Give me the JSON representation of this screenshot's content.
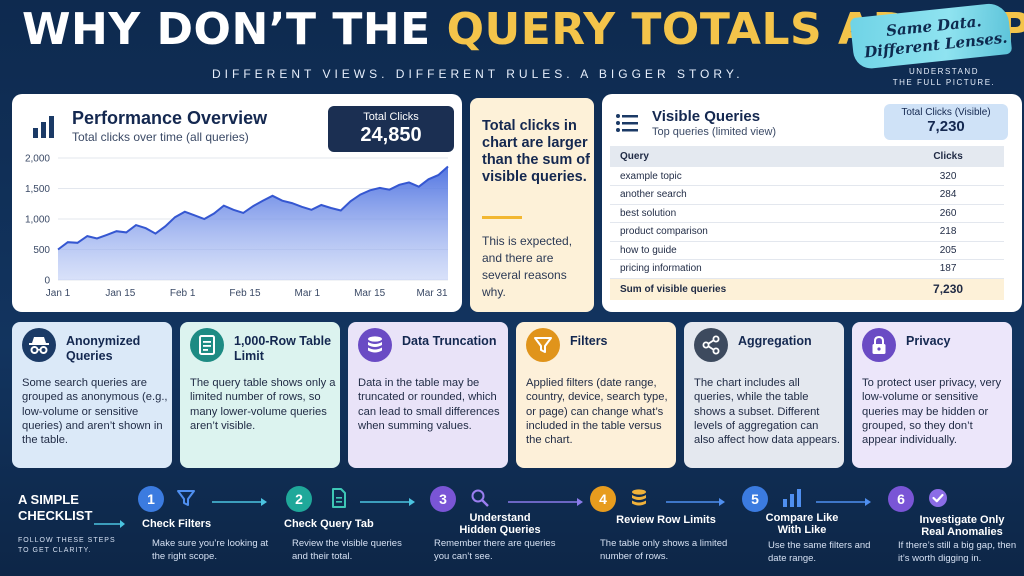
{
  "header": {
    "title_part1": "WHY DON’T THE ",
    "title_part2": "QUERY TOTALS ADD UP?",
    "subtitle": "DIFFERENT VIEWS.  DIFFERENT RULES.  A BIGGER STORY.",
    "badge_line1": "Same Data.",
    "badge_line2": "Different Lenses.",
    "badge_sub_line1": "UNDERSTAND",
    "badge_sub_line2": "THE FULL PICTURE."
  },
  "performance": {
    "title": "Performance Overview",
    "subtitle": "Total clicks over time (all queries)",
    "total_label": "Total Clicks",
    "total_value": "24,850"
  },
  "chart_data": {
    "type": "area",
    "title": "Performance Overview",
    "x_tick_labels": [
      "Jan 1",
      "Jan 15",
      "Feb 1",
      "Feb 15",
      "Mar 1",
      "Mar 15",
      "Mar 31"
    ],
    "y_tick_labels": [
      "0",
      "500",
      "1,000",
      "1,500",
      "2,000"
    ],
    "ylim": [
      0,
      2000
    ],
    "grid": true,
    "series": [
      {
        "values": [
          500,
          620,
          610,
          720,
          680,
          740,
          800,
          780,
          900,
          850,
          760,
          880,
          1030,
          1120,
          1060,
          1000,
          1090,
          1220,
          1150,
          1100,
          1210,
          1300,
          1380,
          1300,
          1260,
          1200,
          1150,
          1230,
          1180,
          1140,
          1290,
          1400,
          1470,
          1510,
          1480,
          1560,
          1600,
          1530,
          1650,
          1720,
          1860
        ]
      }
    ]
  },
  "callout": {
    "main": "Total clicks in chart are larger than the sum of visible queries.",
    "sub": "This is expected, and there are several reasons why."
  },
  "queries": {
    "title": "Visible Queries",
    "subtitle": "Top queries (limited view)",
    "total_label": "Total Clicks (Visible)",
    "total_value": "7,230",
    "col_query": "Query",
    "col_clicks": "Clicks",
    "rows": [
      {
        "query": "example topic",
        "clicks": "320"
      },
      {
        "query": "another search",
        "clicks": "284"
      },
      {
        "query": "best solution",
        "clicks": "260"
      },
      {
        "query": "product comparison",
        "clicks": "218"
      },
      {
        "query": "how to guide",
        "clicks": "205"
      },
      {
        "query": "pricing information",
        "clicks": "187"
      }
    ],
    "sum_label": "Sum of visible queries",
    "sum_value": "7,230"
  },
  "reasons": [
    {
      "title": "Anonymized Queries",
      "body": "Some search queries are grouped as anonymous (e.g., low-volume or sensitive queries) and aren’t shown in the table.",
      "icon": "incognito-icon",
      "bg": "#dbe9f8",
      "icon_bg": "#1b3a66"
    },
    {
      "title": "1,000-Row Table Limit",
      "body": "The query table shows only a limited number of rows, so many lower-volume queries aren’t visible.",
      "icon": "table-doc-icon",
      "bg": "#dcf3ef",
      "icon_bg": "#1d8b83"
    },
    {
      "title": "Data Truncation",
      "body": "Data in the table may be truncated or rounded, which can lead to small differences when summing values.",
      "icon": "database-icon",
      "bg": "#e9e3f8",
      "icon_bg": "#6a4bc4"
    },
    {
      "title": "Filters",
      "body": "Applied filters (date range, country, device, search type, or page) can change what’s included in the table versus the chart.",
      "icon": "filter-icon",
      "bg": "#fdf0d9",
      "icon_bg": "#e0941b"
    },
    {
      "title": "Aggregation",
      "body": "The chart includes all queries, while the table shows a subset. Different levels of aggregation can also affect how data appears.",
      "icon": "share-nodes-icon",
      "bg": "#e4e8ef",
      "icon_bg": "#3d4a5e"
    },
    {
      "title": "Privacy",
      "body": "To protect user privacy, very low-volume or sensitive queries may be hidden or grouped, so they don’t appear individually.",
      "icon": "lock-icon",
      "bg": "#ece6fa",
      "icon_bg": "#6a4bc4"
    }
  ],
  "checklist": {
    "title_line1": "A SIMPLE",
    "title_line2": "CHECKLIST",
    "sub_line1": "FOLLOW THESE STEPS",
    "sub_line2": "TO GET CLARITY.",
    "steps": [
      {
        "num": "1",
        "title": "Check Filters",
        "desc": "Make sure you’re looking at the right scope.",
        "color": "#3b7be0",
        "icon": "filter-icon"
      },
      {
        "num": "2",
        "title": "Check Query Tab",
        "desc": "Review the visible queries and their total.",
        "color": "#1fa89a",
        "icon": "document-icon"
      },
      {
        "num": "3",
        "title": "Understand Hidden Queries",
        "desc": "Remember there are queries you can’t see.",
        "color": "#7a55d6",
        "icon": "search-icon"
      },
      {
        "num": "4",
        "title": "Review Row Limits",
        "desc": "The table only shows a limited number of rows.",
        "color": "#e79c1e",
        "icon": "database-icon"
      },
      {
        "num": "5",
        "title": "Compare Like With Like",
        "desc": "Use the same filters and date range.",
        "color": "#3b7be0",
        "icon": "bar-chart-icon"
      },
      {
        "num": "6",
        "title": "Investigate Only Real Anomalies",
        "desc": "If there’s still a big gap, then it’s worth digging in.",
        "color": "#7a55d6",
        "icon": "check-circle-icon"
      }
    ]
  }
}
